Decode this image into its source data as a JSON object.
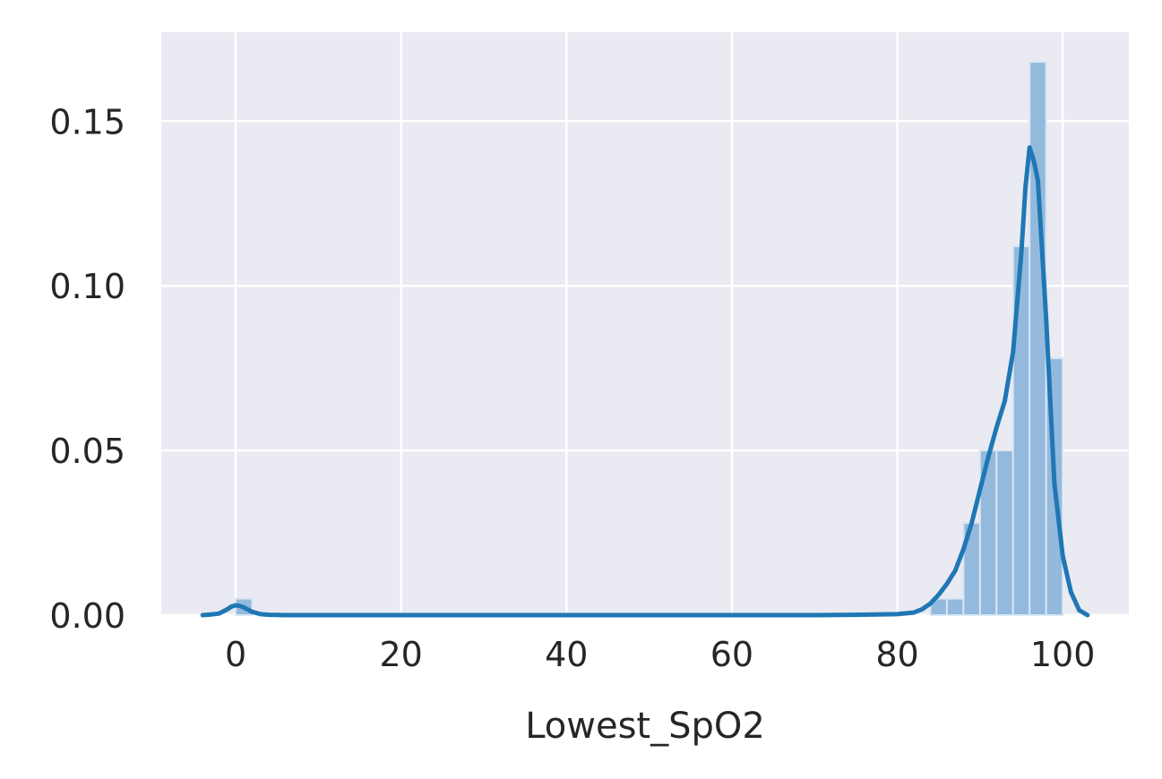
{
  "chart_data": {
    "type": "histogram",
    "xlabel": "Lowest_SpO2",
    "ylabel": "",
    "xlim": [
      -9,
      108
    ],
    "ylim": [
      0,
      0.177
    ],
    "x_ticks": [
      0,
      20,
      40,
      60,
      80,
      100
    ],
    "x_tick_labels": [
      "0",
      "20",
      "40",
      "60",
      "80",
      "100"
    ],
    "y_ticks": [
      0.0,
      0.05,
      0.1,
      0.15
    ],
    "y_tick_labels": [
      "0.00",
      "0.05",
      "0.10",
      "0.15"
    ],
    "grid": true,
    "background": "#EAEAF2",
    "bar_color": "#93B9DC",
    "line_color": "#1F77B4",
    "histogram": {
      "bin_width": 2,
      "bins": [
        {
          "x0": 0,
          "x1": 2,
          "density": 0.005
        },
        {
          "x0": 84,
          "x1": 86,
          "density": 0.005
        },
        {
          "x0": 86,
          "x1": 88,
          "density": 0.005
        },
        {
          "x0": 88,
          "x1": 90,
          "density": 0.028
        },
        {
          "x0": 90,
          "x1": 92,
          "density": 0.05
        },
        {
          "x0": 92,
          "x1": 94,
          "density": 0.05
        },
        {
          "x0": 94,
          "x1": 96,
          "density": 0.112
        },
        {
          "x0": 96,
          "x1": 98,
          "density": 0.168
        },
        {
          "x0": 98,
          "x1": 100,
          "density": 0.078
        }
      ]
    },
    "kde": {
      "x": [
        -4,
        -3,
        -2,
        -1,
        -0.5,
        0,
        0.5,
        1,
        2,
        3,
        4,
        6,
        10,
        20,
        40,
        60,
        70,
        75,
        80,
        82,
        83,
        84,
        85,
        86,
        87,
        88,
        89,
        90,
        91,
        92,
        93,
        94,
        95,
        95.5,
        96,
        96.5,
        97,
        98,
        99,
        100,
        101,
        102,
        103
      ],
      "y": [
        0,
        0.0002,
        0.0005,
        0.0018,
        0.0026,
        0.003,
        0.0028,
        0.0023,
        0.001,
        0.0003,
        0.0001,
        0,
        0,
        0,
        0,
        0,
        0,
        0.0001,
        0.0003,
        0.0008,
        0.0018,
        0.0035,
        0.0062,
        0.0095,
        0.0135,
        0.02,
        0.028,
        0.038,
        0.048,
        0.057,
        0.065,
        0.08,
        0.11,
        0.13,
        0.142,
        0.138,
        0.132,
        0.09,
        0.04,
        0.018,
        0.007,
        0.0015,
        0
      ]
    }
  }
}
